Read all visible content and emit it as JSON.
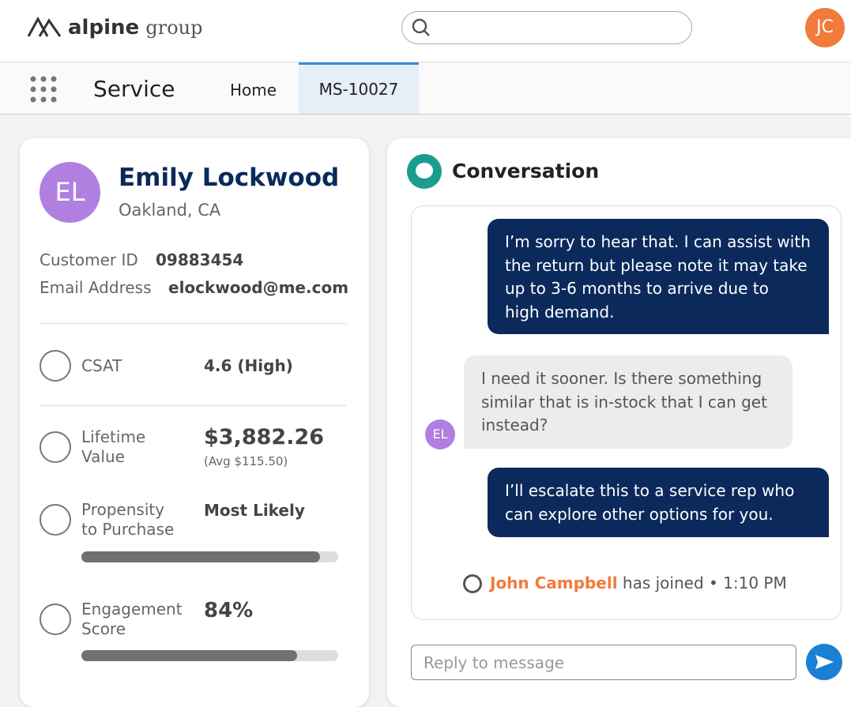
{
  "header": {
    "logo_bold": "alpine",
    "logo_light": "group",
    "avatar": "JC"
  },
  "nav": {
    "app": "Service",
    "tabs": [
      "Home",
      "MS-10027"
    ]
  },
  "customer": {
    "initials": "EL",
    "name": "Emily Lockwood",
    "location": "Oakland, CA",
    "fields": [
      {
        "label": "Customer ID",
        "value": "09883454"
      },
      {
        "label": "Email Address",
        "value": "elockwood@me.com"
      }
    ],
    "csat": {
      "label": "CSAT",
      "value": "4.6 (High)"
    },
    "lifetime": {
      "label": [
        "Lifetime",
        "Value"
      ],
      "value": "$3,882.26",
      "avg": "(Avg $115.50)"
    },
    "propensity": {
      "label": [
        "Propensity",
        "to Purchase"
      ],
      "value_label": "Most Likely",
      "bar_value": 93
    },
    "engagement": {
      "label": [
        "Engagement",
        "Score"
      ],
      "value": 84,
      "value_label": "84%"
    }
  },
  "conversation": {
    "title": "Conversation",
    "messages": [
      {
        "from": "agent",
        "lines": [
          "I’m sorry to hear that. I can assist with",
          "the return but please note it may take",
          "up to 3-6 months to arrive due to",
          "high demand."
        ]
      },
      {
        "from": "customer",
        "initials": "EL",
        "lines": [
          "I need it sooner. Is there something",
          "similar that is in-stock that I can get",
          "instead?"
        ]
      },
      {
        "from": "agent",
        "lines": [
          "I’ll escalate this to a service rep who",
          "can explore other options for you."
        ]
      }
    ],
    "joined_by": "John Campbell",
    "joined_text": "has joined • 1:10 PM",
    "reply_placeholder": "Reply to message"
  }
}
